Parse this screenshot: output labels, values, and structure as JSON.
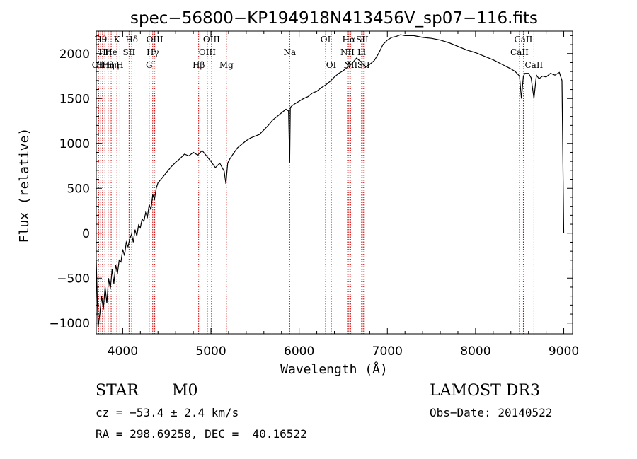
{
  "colors": {
    "line_marker": "#cc0000",
    "spectrum": "#000000",
    "background": "#ffffff"
  },
  "info": {
    "class_label": "STAR",
    "subclass_label": "M0",
    "survey_label": "LAMOST DR3",
    "cz_text": "cz = −53.4 ± 2.4 km/s",
    "obs_date_text": "Obs−Date: 20140522",
    "radec_text": "RA = 298.69258, DEC =  40.16522"
  },
  "chart_data": {
    "type": "line",
    "title": "spec−56800−KP194918N413456V_sp07−116.fits",
    "xlabel": "Wavelength (Å)",
    "ylabel": "Flux (relative)",
    "xlim": [
      3700,
      9100
    ],
    "ylim": [
      -1120,
      2250
    ],
    "x_ticks": [
      {
        "value": 4000,
        "label": "4000"
      },
      {
        "value": 5000,
        "label": "5000"
      },
      {
        "value": 6000,
        "label": "6000"
      },
      {
        "value": 7000,
        "label": "7000"
      },
      {
        "value": 8000,
        "label": "8000"
      },
      {
        "value": 9000,
        "label": "9000"
      }
    ],
    "y_ticks": [
      {
        "value": -1000,
        "label": "−1000"
      },
      {
        "value": -500,
        "label": "−500"
      },
      {
        "value": 0,
        "label": "0"
      },
      {
        "value": 500,
        "label": "500"
      },
      {
        "value": 1000,
        "label": "1000"
      },
      {
        "value": 1500,
        "label": "1500"
      },
      {
        "value": 2000,
        "label": "2000"
      }
    ],
    "series": [
      {
        "name": "flux",
        "x": [
          3700,
          3720,
          3740,
          3760,
          3780,
          3800,
          3820,
          3840,
          3860,
          3880,
          3900,
          3920,
          3940,
          3960,
          3980,
          4000,
          4020,
          4040,
          4060,
          4080,
          4100,
          4120,
          4140,
          4160,
          4180,
          4200,
          4220,
          4240,
          4260,
          4280,
          4300,
          4320,
          4340,
          4360,
          4380,
          4400,
          4450,
          4500,
          4550,
          4600,
          4650,
          4700,
          4750,
          4800,
          4850,
          4900,
          4950,
          5000,
          5050,
          5100,
          5150,
          5170,
          5190,
          5210,
          5250,
          5300,
          5350,
          5400,
          5450,
          5500,
          5550,
          5600,
          5650,
          5700,
          5750,
          5800,
          5850,
          5880,
          5893,
          5900,
          5920,
          5950,
          6000,
          6050,
          6100,
          6150,
          6200,
          6250,
          6300,
          6350,
          6400,
          6450,
          6500,
          6550,
          6563,
          6580,
          6600,
          6650,
          6700,
          6750,
          6800,
          6850,
          6900,
          6950,
          7000,
          7050,
          7100,
          7150,
          7200,
          7300,
          7400,
          7500,
          7600,
          7700,
          7800,
          7900,
          8000,
          8100,
          8200,
          8300,
          8400,
          8450,
          8498,
          8520,
          8542,
          8560,
          8600,
          8630,
          8662,
          8690,
          8720,
          8760,
          8800,
          8850,
          8900,
          8950,
          8980,
          9000
        ],
        "values": [
          -300,
          -1050,
          -900,
          -700,
          -850,
          -600,
          -780,
          -500,
          -620,
          -400,
          -560,
          -350,
          -450,
          -300,
          -320,
          -180,
          -250,
          -100,
          -150,
          -60,
          -10,
          -100,
          40,
          -30,
          90,
          60,
          160,
          130,
          230,
          180,
          320,
          260,
          430,
          380,
          500,
          560,
          620,
          680,
          740,
          790,
          830,
          880,
          860,
          900,
          870,
          920,
          860,
          800,
          730,
          780,
          690,
          550,
          780,
          820,
          880,
          950,
          990,
          1030,
          1060,
          1080,
          1100,
          1150,
          1200,
          1260,
          1300,
          1340,
          1380,
          1360,
          780,
          1400,
          1420,
          1440,
          1470,
          1500,
          1520,
          1560,
          1580,
          1620,
          1650,
          1690,
          1740,
          1780,
          1810,
          1850,
          1900,
          1870,
          1890,
          1950,
          1910,
          1850,
          1880,
          1920,
          2000,
          2100,
          2150,
          2180,
          2190,
          2210,
          2200,
          2200,
          2180,
          2170,
          2150,
          2120,
          2080,
          2040,
          2010,
          1970,
          1930,
          1880,
          1830,
          1800,
          1750,
          1500,
          1750,
          1780,
          1780,
          1730,
          1500,
          1760,
          1720,
          1750,
          1740,
          1780,
          1760,
          1790,
          1700,
          0
        ]
      }
    ],
    "annotations": [
      {
        "wavelength": 3727,
        "label": "OII",
        "row": 3
      },
      {
        "wavelength": 3750,
        "label": "Hθ",
        "row": 1
      },
      {
        "wavelength": 3771,
        "label": "Hη",
        "row": 3
      },
      {
        "wavelength": 3798,
        "label": "Hη",
        "row": 2
      },
      {
        "wavelength": 3835,
        "label": "Hη",
        "row": 3
      },
      {
        "wavelength": 3869,
        "label": "He",
        "row": 2
      },
      {
        "wavelength": 3889,
        "label": "Hη",
        "row": 3
      },
      {
        "wavelength": 3934,
        "label": "K",
        "row": 1
      },
      {
        "wavelength": 3968,
        "label": "H",
        "row": 3
      },
      {
        "wavelength": 4072,
        "label": "SII",
        "row": 2
      },
      {
        "wavelength": 4102,
        "label": "Hδ",
        "row": 1
      },
      {
        "wavelength": 4300,
        "label": "G",
        "row": 3
      },
      {
        "wavelength": 4340,
        "label": "Hγ",
        "row": 2
      },
      {
        "wavelength": 4363,
        "label": "OIII",
        "row": 1
      },
      {
        "wavelength": 4861,
        "label": "Hβ",
        "row": 3
      },
      {
        "wavelength": 4959,
        "label": "OIII",
        "row": 2
      },
      {
        "wavelength": 5007,
        "label": "OIII",
        "row": 1
      },
      {
        "wavelength": 5175,
        "label": "Mg",
        "row": 3
      },
      {
        "wavelength": 5893,
        "label": "Na",
        "row": 2
      },
      {
        "wavelength": 6300,
        "label": "OI",
        "row": 1
      },
      {
        "wavelength": 6364,
        "label": "OI",
        "row": 3
      },
      {
        "wavelength": 6548,
        "label": "NII",
        "row": 2
      },
      {
        "wavelength": 6563,
        "label": "Hα",
        "row": 1
      },
      {
        "wavelength": 6583,
        "label": "NII",
        "row": 3
      },
      {
        "wavelength": 6708,
        "label": "Li",
        "row": 2
      },
      {
        "wavelength": 6716,
        "label": "SII",
        "row": 1
      },
      {
        "wavelength": 6731,
        "label": "SII",
        "row": 3
      },
      {
        "wavelength": 8498,
        "label": "CaII",
        "row": 2
      },
      {
        "wavelength": 8542,
        "label": "CaII",
        "row": 1
      },
      {
        "wavelength": 8662,
        "label": "CaII",
        "row": 3
      }
    ]
  }
}
